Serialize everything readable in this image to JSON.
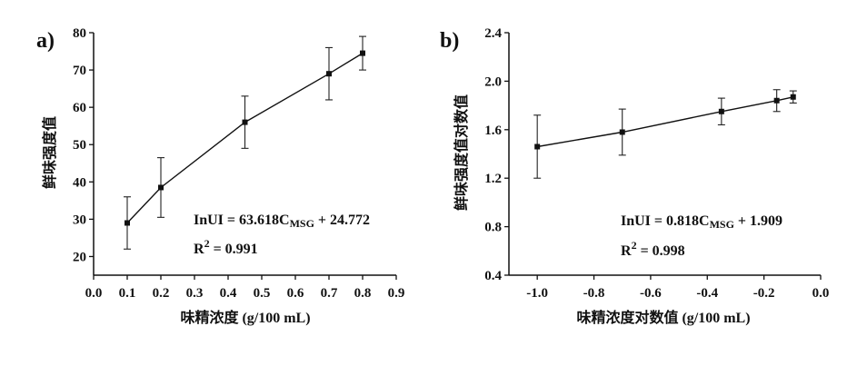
{
  "chart_data": [
    {
      "id": "a",
      "type": "line",
      "panel_label": "a)",
      "title": "",
      "xlabel": "味精浓度 (g/100 mL)",
      "ylabel": "鲜味强度值",
      "xlim": [
        0.0,
        0.9
      ],
      "ylim": [
        15,
        80
      ],
      "x_ticks": [
        0.0,
        0.1,
        0.2,
        0.3,
        0.4,
        0.5,
        0.6,
        0.7,
        0.8,
        0.9
      ],
      "x_tick_labels": [
        "0.0",
        "0.1",
        "0.2",
        "0.3",
        "0.4",
        "0.5",
        "0.6",
        "0.7",
        "0.8",
        "0.9"
      ],
      "y_ticks": [
        20,
        30,
        40,
        50,
        60,
        70,
        80
      ],
      "y_tick_labels": [
        "20",
        "30",
        "40",
        "50",
        "60",
        "70",
        "80"
      ],
      "grid": false,
      "series": [
        {
          "x": [
            0.1,
            0.2,
            0.45,
            0.7,
            0.8
          ],
          "y": [
            29.0,
            38.5,
            56.0,
            69.0,
            74.5
          ],
          "err": [
            7.0,
            8.0,
            7.0,
            7.0,
            4.5
          ]
        }
      ],
      "annotations": {
        "equation": {
          "prefix": "InUI = 63.618C",
          "sub": "MSG",
          "suffix": " + 24.772"
        },
        "r2": {
          "prefix": "R",
          "sup": "2",
          "suffix": " = 0.991"
        }
      }
    },
    {
      "id": "b",
      "type": "line",
      "panel_label": "b)",
      "title": "",
      "xlabel": "味精浓度对数值 (g/100 mL)",
      "ylabel": "鲜味强度值对数值",
      "xlim": [
        -1.1,
        0.0
      ],
      "ylim": [
        0.4,
        2.4
      ],
      "x_ticks": [
        -1.0,
        -0.8,
        -0.6,
        -0.4,
        -0.2,
        0.0
      ],
      "x_tick_labels": [
        "-1.0",
        "-0.8",
        "-0.6",
        "-0.4",
        "-0.2",
        "0.0"
      ],
      "y_ticks": [
        0.4,
        0.8,
        1.2,
        1.6,
        2.0,
        2.4
      ],
      "y_tick_labels": [
        "0.4",
        "0.8",
        "1.2",
        "1.6",
        "2.0",
        "2.4"
      ],
      "grid": false,
      "series": [
        {
          "x": [
            -1.0,
            -0.7,
            -0.35,
            -0.155,
            -0.097
          ],
          "y": [
            1.46,
            1.58,
            1.75,
            1.84,
            1.87
          ],
          "err": [
            0.26,
            0.19,
            0.11,
            0.09,
            0.05
          ]
        }
      ],
      "annotations": {
        "equation": {
          "prefix": "InUI = 0.818C",
          "sub": "MSG",
          "suffix": " + 1.909"
        },
        "r2": {
          "prefix": "R",
          "sup": "2",
          "suffix": " = 0.998"
        }
      }
    }
  ]
}
